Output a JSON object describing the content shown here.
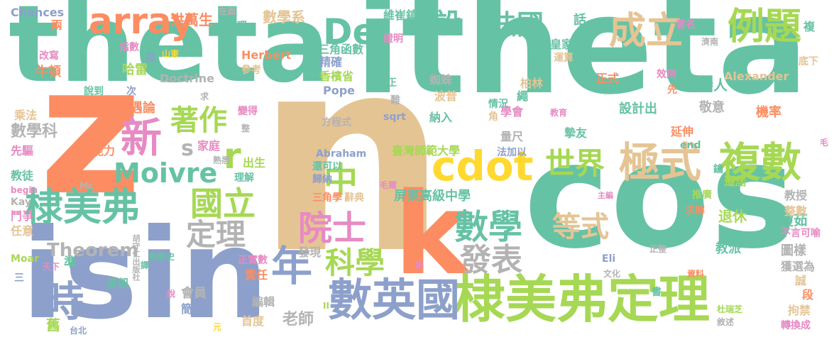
{
  "colors": {
    "green": "#66c2a5",
    "orange": "#fc8d62",
    "blue": "#8da0cb",
    "pink": "#e78ac3",
    "lime": "#a6d854",
    "yellow": "#e5c494",
    "tan": "#e5c494",
    "gray": "#b3b3b3",
    "gold": "#ffd92f"
  },
  "words": [
    {
      "text": "theta",
      "color": "green"
    },
    {
      "text": "itheta",
      "color": "green"
    },
    {
      "text": "n",
      "color": "tan"
    },
    {
      "text": "z",
      "color": "orange"
    },
    {
      "text": "cos",
      "color": "green"
    },
    {
      "text": "isin",
      "color": "blue"
    },
    {
      "text": "k",
      "color": "orange"
    },
    {
      "text": "棣美弗定理",
      "color": "lime"
    },
    {
      "text": "棣美弗",
      "color": "green"
    },
    {
      "text": "數英國",
      "color": "blue"
    },
    {
      "text": "cdot",
      "color": "gold"
    },
    {
      "text": "時",
      "color": "blue"
    },
    {
      "text": "年",
      "color": "blue"
    },
    {
      "text": "中",
      "color": "lime"
    },
    {
      "text": "複數",
      "color": "lime"
    },
    {
      "text": "極式",
      "color": "yellow"
    },
    {
      "text": "世界",
      "color": "lime"
    },
    {
      "text": "成立",
      "color": "tan"
    },
    {
      "text": "例題",
      "color": "lime"
    },
    {
      "text": "array",
      "color": "orange"
    },
    {
      "text": "De",
      "color": "green"
    },
    {
      "text": "新",
      "color": "pink"
    },
    {
      "text": "著作",
      "color": "lime"
    },
    {
      "text": "Moivre",
      "color": "green"
    },
    {
      "text": "國立",
      "color": "lime"
    },
    {
      "text": "定理",
      "color": "gray"
    },
    {
      "text": "院士",
      "color": "pink"
    },
    {
      "text": "科學",
      "color": "lime"
    },
    {
      "text": "數學",
      "color": "green"
    },
    {
      "text": "發表",
      "color": "gray"
    },
    {
      "text": "等式",
      "color": "yellow"
    },
    {
      "text": "法國",
      "color": "green"
    },
    {
      "text": "設",
      "color": "green"
    },
    {
      "text": "Theorem",
      "color": "gray"
    },
    {
      "text": "r",
      "color": "lime"
    },
    {
      "text": "s",
      "color": "gray"
    },
    {
      "text": "數學科",
      "color": "gray"
    },
    {
      "text": "洪萬生",
      "color": "orange"
    },
    {
      "text": "數學系",
      "color": "yellow"
    },
    {
      "text": "機遇論",
      "color": "orange"
    },
    {
      "text": "牛頓",
      "color": "orange"
    },
    {
      "text": "哈雷",
      "color": "lime"
    },
    {
      "text": "Doctrine",
      "color": "gray"
    },
    {
      "text": "Herbert",
      "color": "orange"
    },
    {
      "text": "三角函數",
      "color": "green"
    },
    {
      "text": "精確",
      "color": "blue"
    },
    {
      "text": "香檳省",
      "color": "lime"
    },
    {
      "text": "Pope",
      "color": "blue"
    },
    {
      "text": "維崔鎮",
      "color": "green"
    },
    {
      "text": "蜘蛛",
      "color": "gray"
    },
    {
      "text": "波普",
      "color": "yellow"
    },
    {
      "text": "皇家",
      "color": "green"
    },
    {
      "text": "柏林",
      "color": "yellow"
    },
    {
      "text": "學會",
      "color": "pink"
    },
    {
      "text": "繩",
      "color": "green"
    },
    {
      "text": "Alexander",
      "color": "yellow"
    },
    {
      "text": "詩人",
      "color": "green"
    },
    {
      "text": "正式",
      "color": "orange"
    },
    {
      "text": "設計出",
      "color": "green"
    },
    {
      "text": "敬意",
      "color": "gray"
    },
    {
      "text": "機率",
      "color": "orange"
    },
    {
      "text": "延伸",
      "color": "orange"
    },
    {
      "text": "臺灣師範大學",
      "color": "lime"
    },
    {
      "text": "屏東高級中學",
      "color": "green"
    },
    {
      "text": "量尺",
      "color": "gray"
    },
    {
      "text": "摯友",
      "color": "green"
    },
    {
      "text": "楊瓊茹",
      "color": "green"
    },
    {
      "text": "退休",
      "color": "lime"
    },
    {
      "text": "教授",
      "color": "gray"
    },
    {
      "text": "遷居",
      "color": "lime"
    },
    {
      "text": "Abraham",
      "color": "blue"
    },
    {
      "text": "法加以",
      "color": "blue"
    },
    {
      "text": "讚禮",
      "color": "yellow"
    },
    {
      "text": "還可以",
      "color": "green"
    },
    {
      "text": "歸納",
      "color": "blue"
    },
    {
      "text": "出生",
      "color": "lime"
    },
    {
      "text": "家庭",
      "color": "pink"
    },
    {
      "text": "能力",
      "color": "orange"
    },
    {
      "text": "先驅",
      "color": "pink"
    },
    {
      "text": "乘法",
      "color": "yellow"
    },
    {
      "text": "教徒",
      "color": "green"
    },
    {
      "text": "鬥爭",
      "color": "pink"
    },
    {
      "text": "任意",
      "color": "yellow"
    },
    {
      "text": "Kay",
      "color": "gray"
    },
    {
      "text": "Moar",
      "color": "lime"
    },
    {
      "text": "準",
      "color": "green"
    },
    {
      "text": "麥凱",
      "color": "green"
    },
    {
      "text": "舊",
      "color": "lime"
    },
    {
      "text": "會員",
      "color": "gray"
    },
    {
      "text": "簡單",
      "color": "blue"
    },
    {
      "text": "首度",
      "color": "yellow"
    },
    {
      "text": "編輯",
      "color": "gray"
    },
    {
      "text": "責任",
      "color": "orange"
    },
    {
      "text": "正實數",
      "color": "pink"
    },
    {
      "text": "發現",
      "color": "gray"
    },
    {
      "text": "老師",
      "color": "gray"
    },
    {
      "text": "三角學",
      "color": "orange"
    },
    {
      "text": "辭典",
      "color": "yellow"
    },
    {
      "text": "求解",
      "color": "orange"
    },
    {
      "text": "推廣",
      "color": "lime"
    },
    {
      "text": "整數",
      "color": "yellow"
    },
    {
      "text": "不言可喻",
      "color": "pink"
    },
    {
      "text": "教派",
      "color": "green"
    },
    {
      "text": "圖樣",
      "color": "gray"
    },
    {
      "text": "獲選為",
      "color": "gray"
    },
    {
      "text": "誠",
      "color": "yellow"
    },
    {
      "text": "段",
      "color": "orange"
    },
    {
      "text": "拘禁",
      "color": "yellow"
    },
    {
      "text": "轉換成",
      "color": "pink"
    },
    {
      "text": "Chances",
      "color": "blue"
    },
    {
      "text": "兩",
      "color": "orange"
    },
    {
      "text": "指數",
      "color": "pink"
    },
    {
      "text": "改寫",
      "color": "pink"
    },
    {
      "text": "茲",
      "color": "blue"
    },
    {
      "text": "山東",
      "color": "gold"
    },
    {
      "text": "道理",
      "color": "green"
    },
    {
      "text": "在面",
      "color": "gray"
    },
    {
      "text": "證明",
      "color": "pink"
    },
    {
      "text": "參考",
      "color": "yellow"
    },
    {
      "text": "說到",
      "color": "green"
    },
    {
      "text": "次",
      "color": "blue"
    },
    {
      "text": "變得",
      "color": "pink"
    },
    {
      "text": "求",
      "color": "gray"
    },
    {
      "text": "整",
      "color": "gray"
    },
    {
      "text": "話",
      "color": "green"
    },
    {
      "text": "著名",
      "color": "pink"
    },
    {
      "text": "運算",
      "color": "yellow"
    },
    {
      "text": "濟南",
      "color": "gray"
    },
    {
      "text": "複",
      "color": "green"
    },
    {
      "text": "底下",
      "color": "yellow"
    },
    {
      "text": "效用",
      "color": "pink"
    },
    {
      "text": "先",
      "color": "orange"
    },
    {
      "text": "教育",
      "color": "pink"
    },
    {
      "text": "end",
      "color": "green"
    },
    {
      "text": "毛",
      "color": "pink"
    },
    {
      "text": "鑰",
      "color": "green"
    },
    {
      "text": "方程式",
      "color": "gray"
    },
    {
      "text": "納入",
      "color": "green"
    },
    {
      "text": "情況",
      "color": "green"
    },
    {
      "text": "角",
      "color": "yellow"
    },
    {
      "text": "sqrt",
      "color": "blue"
    },
    {
      "text": "難",
      "color": "gray"
    },
    {
      "text": "正",
      "color": "green"
    },
    {
      "text": "毛爾",
      "color": "pink"
    },
    {
      "text": "胡守仁出版社",
      "color": "gray"
    },
    {
      "text": "數學史",
      "color": "green"
    },
    {
      "text": "天下",
      "color": "pink"
    },
    {
      "text": "三",
      "color": "blue"
    },
    {
      "text": "譯",
      "color": "green"
    },
    {
      "text": "說",
      "color": "pink"
    },
    {
      "text": "台北",
      "color": "blue"
    },
    {
      "text": "元",
      "color": "gold"
    },
    {
      "text": "熟悉",
      "color": "gray"
    },
    {
      "text": "理解",
      "color": "green"
    },
    {
      "text": "begin",
      "color": "pink"
    },
    {
      "text": "Mc",
      "color": "gray"
    },
    {
      "text": "Eli",
      "color": "blue"
    },
    {
      "text": "文化",
      "color": "gray"
    },
    {
      "text": "主編",
      "color": "pink"
    },
    {
      "text": "正整",
      "color": "gray"
    },
    {
      "text": "資料",
      "color": "orange"
    },
    {
      "text": "杜瑞芝",
      "color": "lime"
    },
    {
      "text": "敘述",
      "color": "gray"
    },
    {
      "text": "書",
      "color": "green"
    },
    {
      "text": "解",
      "color": "pink"
    },
    {
      "text": "II",
      "color": "lime"
    }
  ]
}
